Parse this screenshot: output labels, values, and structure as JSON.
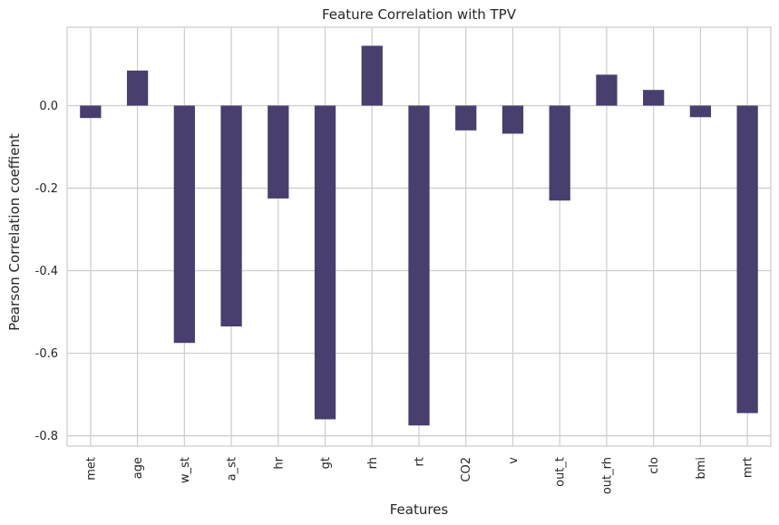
{
  "chart_data": {
    "type": "bar",
    "title": "Feature Correlation with TPV",
    "xlabel": "Features",
    "ylabel": "Pearson Correlation coeffient",
    "categories": [
      "met",
      "age",
      "w_st",
      "a_st",
      "hr",
      "gt",
      "rh",
      "rt",
      "CO2",
      "v",
      "out_t",
      "out_rh",
      "clo",
      "bmi",
      "mrt"
    ],
    "values": [
      -0.03,
      0.085,
      -0.575,
      -0.535,
      -0.225,
      -0.76,
      0.145,
      -0.775,
      -0.06,
      -0.068,
      -0.23,
      0.075,
      0.038,
      -0.028,
      -0.745
    ],
    "yticks": [
      0.0,
      -0.2,
      -0.4,
      -0.6,
      -0.8
    ],
    "ytick_labels": [
      "0.0",
      "-0.2",
      "-0.4",
      "-0.6",
      "-0.8"
    ],
    "ylim": [
      -0.825,
      0.19
    ],
    "grid": true,
    "bar_color": "#483f6e",
    "grid_color": "#cccccc",
    "spine_color": "#cccccc"
  }
}
